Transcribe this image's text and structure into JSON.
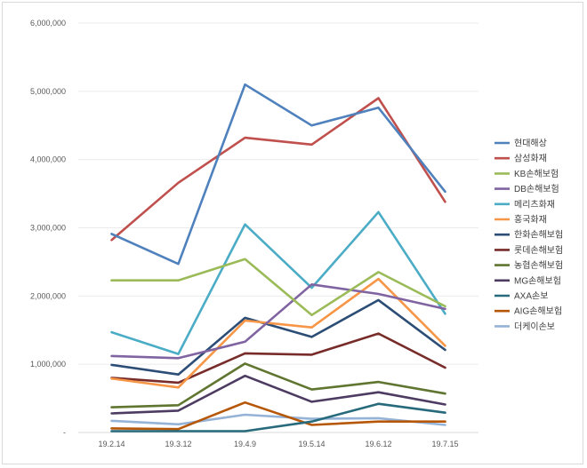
{
  "chart_data": {
    "type": "line",
    "title": "",
    "xlabel": "",
    "ylabel": "",
    "ylim": [
      0,
      6000000
    ],
    "y_ticks": [
      {
        "value": 0,
        "label": "-"
      },
      {
        "value": 1000000,
        "label": "1,000,000"
      },
      {
        "value": 2000000,
        "label": "2,000,000"
      },
      {
        "value": 3000000,
        "label": "3,000,000"
      },
      {
        "value": 4000000,
        "label": "4,000,000"
      },
      {
        "value": 5000000,
        "label": "5,000,000"
      },
      {
        "value": 6000000,
        "label": "6,000,000"
      }
    ],
    "categories": [
      "19.2.14",
      "19.3.12",
      "19.4.9",
      "19.5.14",
      "19.6.12",
      "19.7.15"
    ],
    "legend_position": "right",
    "series": [
      {
        "name": "현대해상",
        "color": "#4f81bd",
        "values": [
          2910000,
          2470000,
          5100000,
          4500000,
          4760000,
          3530000
        ]
      },
      {
        "name": "삼성화재",
        "color": "#c0504d",
        "values": [
          2820000,
          3660000,
          4320000,
          4220000,
          4900000,
          3380000
        ]
      },
      {
        "name": "KB손해보험",
        "color": "#9bbb59",
        "values": [
          2230000,
          2230000,
          2540000,
          1720000,
          2350000,
          1850000
        ]
      },
      {
        "name": "DB손해보험",
        "color": "#8064a2",
        "values": [
          1120000,
          1090000,
          1330000,
          2170000,
          2030000,
          1810000
        ]
      },
      {
        "name": "메리츠화재",
        "color": "#4bacc6",
        "values": [
          1470000,
          1150000,
          3050000,
          2120000,
          3230000,
          1740000
        ]
      },
      {
        "name": "흥국화재",
        "color": "#f79646",
        "values": [
          790000,
          660000,
          1640000,
          1540000,
          2250000,
          1270000
        ]
      },
      {
        "name": "한화손해보험",
        "color": "#2c4d75",
        "values": [
          990000,
          850000,
          1680000,
          1400000,
          1940000,
          1210000
        ]
      },
      {
        "name": "롯데손해보험",
        "color": "#772c2a",
        "values": [
          800000,
          730000,
          1160000,
          1140000,
          1450000,
          950000
        ]
      },
      {
        "name": "농협손해보험",
        "color": "#5f7530",
        "values": [
          370000,
          400000,
          1010000,
          630000,
          740000,
          570000
        ]
      },
      {
        "name": "MG손해보험",
        "color": "#4d3b62",
        "values": [
          280000,
          320000,
          830000,
          450000,
          590000,
          410000
        ]
      },
      {
        "name": "AXA손보",
        "color": "#276a7c",
        "values": [
          20000,
          20000,
          20000,
          160000,
          420000,
          290000
        ]
      },
      {
        "name": "AIG손해보험",
        "color": "#b65708",
        "values": [
          60000,
          50000,
          440000,
          110000,
          160000,
          160000
        ]
      },
      {
        "name": "더케이손보",
        "color": "#95b3d7",
        "values": [
          170000,
          120000,
          260000,
          200000,
          210000,
          110000
        ]
      }
    ]
  }
}
